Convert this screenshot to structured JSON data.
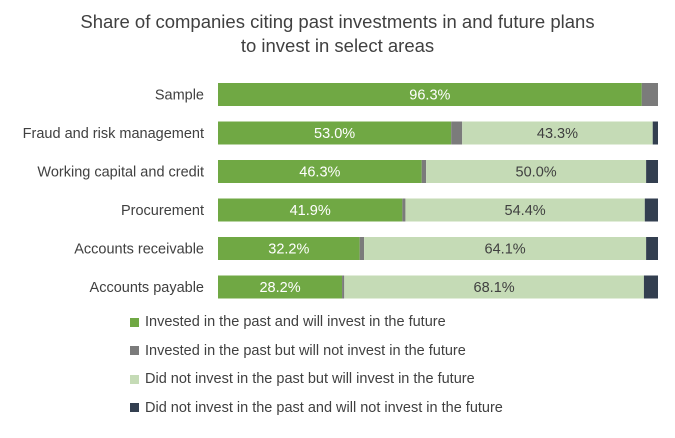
{
  "chart_data": {
    "type": "bar",
    "orientation": "horizontal",
    "stacked": true,
    "title": [
      "Share of companies citing past investments in and future plans",
      "to invest in select areas"
    ],
    "categories": [
      "Sample",
      "Fraud and risk management",
      "Working capital and credit",
      "Procurement",
      "Accounts receivable",
      "Accounts payable"
    ],
    "series": [
      {
        "name": "Invested in the past and will invest in the future",
        "color": "#70a844",
        "values": [
          96.3,
          53.0,
          46.3,
          41.9,
          32.2,
          28.2
        ],
        "labels": [
          "96.3%",
          "53.0%",
          "46.3%",
          "41.9%",
          "32.2%",
          "28.2%"
        ],
        "label_color": "#ffffff"
      },
      {
        "name": "Invested in the past but will not invest in the future",
        "color": "#7b7b7b",
        "values": [
          3.7,
          2.5,
          1.0,
          0.7,
          1.0,
          0.5
        ],
        "labels": [
          "",
          "",
          "",
          "",
          "",
          ""
        ],
        "label_color": "#ffffff"
      },
      {
        "name": "Did not invest in the past but will invest in the future",
        "color": "#c5dbb6",
        "values": [
          0,
          43.3,
          50.0,
          54.4,
          64.1,
          68.1
        ],
        "labels": [
          "",
          "43.3%",
          "50.0%",
          "54.4%",
          "64.1%",
          "68.1%"
        ],
        "label_color": "#404040"
      },
      {
        "name": "Did not invest in the past and will not invest in the future",
        "color": "#333f50",
        "values": [
          0,
          1.2,
          2.7,
          3.0,
          2.7,
          3.2
        ],
        "labels": [
          "",
          "",
          "",
          "",
          "",
          ""
        ],
        "label_color": "#ffffff"
      }
    ],
    "xlim": [
      0,
      100
    ],
    "legend_position": "bottom"
  }
}
